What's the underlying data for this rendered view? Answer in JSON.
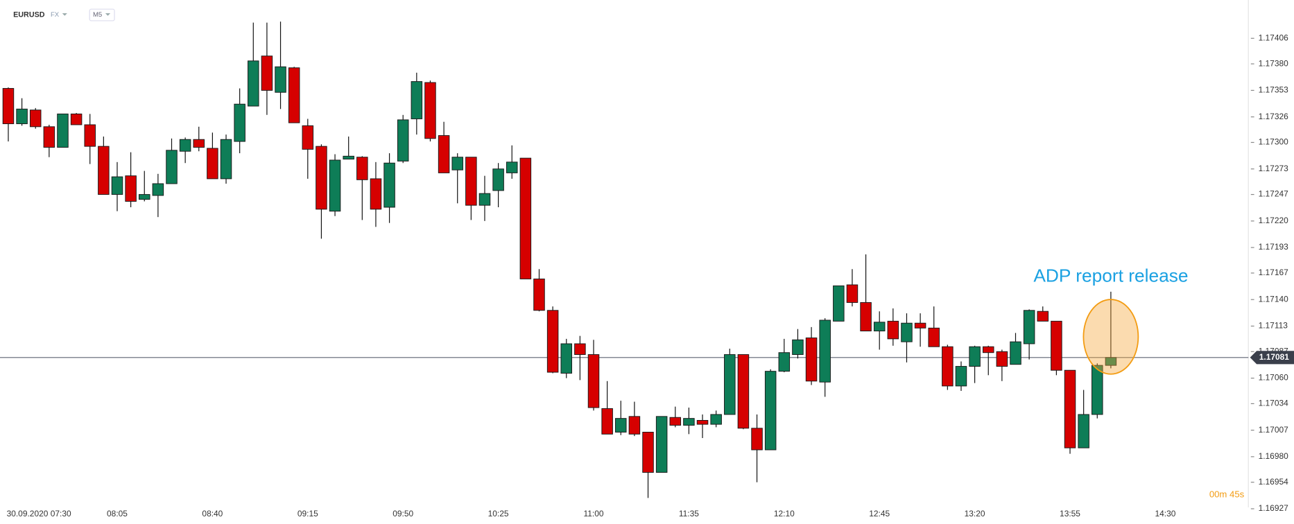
{
  "chart_data": {
    "type": "candlestick",
    "symbol": "EURUSD",
    "market": "FX",
    "timeframe": "M5",
    "annotation": "ADP report release",
    "timer": "00m 45s",
    "up_color": "#0e7d57",
    "down_color": "#d60000",
    "last_price": 1.17081,
    "ylim": [
      1.16925,
      1.17445
    ],
    "yticks": [
      1.17406,
      {
        "value": 1.1738,
        "label": "1.17380"
      },
      1.17353,
      1.17326,
      {
        "value": 1.173,
        "label": "1.17300"
      },
      1.17273,
      1.17247,
      {
        "value": 1.1722,
        "label": "1.17220"
      },
      1.17193,
      1.17167,
      {
        "value": 1.1714,
        "label": "1.17140"
      },
      1.17113,
      1.17087,
      {
        "value": 1.1706,
        "label": "1.17060"
      },
      1.17034,
      1.17007,
      {
        "value": 1.1698,
        "label": "1.16980"
      },
      1.16954,
      1.16927
    ],
    "categories": [
      null,
      "30.09.2020 07:30",
      null,
      null,
      null,
      null,
      null,
      null,
      "08:05",
      null,
      null,
      null,
      null,
      null,
      null,
      "08:40",
      null,
      null,
      null,
      null,
      null,
      null,
      "09:15",
      null,
      null,
      null,
      null,
      null,
      null,
      "09:50",
      null,
      null,
      null,
      null,
      null,
      null,
      "10:25",
      null,
      null,
      null,
      null,
      null,
      null,
      "11:00",
      null,
      null,
      null,
      null,
      null,
      null,
      "11:35",
      null,
      null,
      null,
      null,
      null,
      null,
      "12:10",
      null,
      null,
      null,
      null,
      null,
      null,
      "12:45",
      null,
      null,
      null,
      null,
      null,
      null,
      "13:20",
      null,
      null,
      null,
      null,
      null,
      null,
      "13:55",
      null,
      null,
      null,
      null,
      null,
      null,
      "14:30"
    ],
    "open": [
      1.17355,
      1.17319,
      1.17333,
      1.17316,
      1.17295,
      1.17329,
      1.17318,
      1.17296,
      1.17247,
      1.17266,
      1.17242,
      1.17246,
      1.17258,
      1.17291,
      1.17303,
      1.17294,
      1.17263,
      1.17301,
      1.17337,
      1.17388,
      1.17351,
      1.17376,
      1.17317,
      1.17296,
      1.1723,
      1.17283,
      1.17285,
      1.17263,
      1.17234,
      1.17281,
      1.17324,
      1.17361,
      1.17307,
      1.17272,
      1.17285,
      1.17236,
      1.17251,
      1.17269,
      1.17284,
      1.17161,
      1.17129,
      1.17065,
      1.17095,
      1.17084,
      1.17029,
      1.17005,
      1.17021,
      1.17005,
      1.16964,
      1.1702,
      1.17012,
      1.17017,
      1.17013,
      1.17023,
      1.17084,
      1.17009,
      1.16987,
      1.17067,
      1.17084,
      1.17101,
      1.17056,
      1.17118,
      1.17155,
      1.17137,
      1.17108,
      1.17118,
      1.17097,
      1.17116,
      1.17111,
      1.17092,
      1.17052,
      1.17072,
      1.17092,
      1.17087,
      1.17074,
      1.17095,
      1.17128,
      1.17118,
      1.17068,
      1.16989,
      1.17023,
      1.17073,
      null,
      null,
      null,
      null
    ],
    "high": [
      1.17356,
      1.17345,
      1.17335,
      1.17318,
      1.17329,
      1.1733,
      1.17329,
      1.17306,
      1.1728,
      1.1729,
      1.17271,
      1.17268,
      1.17304,
      1.17305,
      1.17316,
      1.1731,
      1.17308,
      1.17355,
      1.17422,
      1.17422,
      1.17423,
      1.17377,
      1.17324,
      1.17298,
      1.17288,
      1.17306,
      1.17286,
      1.1728,
      1.17289,
      1.17328,
      1.17371,
      1.17363,
      1.17321,
      1.17289,
      1.17285,
      1.17266,
      1.17279,
      1.17297,
      1.17284,
      1.17171,
      1.17133,
      1.171,
      1.17103,
      1.17099,
      1.17057,
      1.17037,
      1.17036,
      1.17005,
      1.17021,
      1.17031,
      1.1703,
      1.17023,
      1.17027,
      1.1709,
      1.17084,
      1.17023,
      1.17069,
      1.171,
      1.1711,
      1.17112,
      1.17121,
      1.17154,
      1.17171,
      1.17186,
      1.17128,
      1.17131,
      1.17126,
      1.17126,
      1.17133,
      1.17094,
      1.17077,
      1.17093,
      1.17093,
      1.17089,
      1.17106,
      1.1713,
      1.17133,
      1.17118,
      1.17068,
      1.17048,
      1.17075,
      1.17148,
      null,
      null,
      null,
      null
    ],
    "low": [
      1.17301,
      1.17317,
      1.17314,
      1.17285,
      1.17295,
      1.17318,
      1.17278,
      1.17247,
      1.1723,
      1.17234,
      1.1724,
      1.17224,
      1.17258,
      1.17279,
      1.17291,
      1.17263,
      1.17258,
      1.17289,
      1.17337,
      1.17328,
      1.17334,
      1.1732,
      1.17263,
      1.17202,
      1.17225,
      1.17283,
      1.17221,
      1.17214,
      1.17218,
      1.17279,
      1.17308,
      1.17301,
      1.17269,
      1.17238,
      1.17221,
      1.1722,
      1.17234,
      1.17263,
      1.17161,
      1.17128,
      1.17065,
      1.1706,
      1.17058,
      1.17027,
      1.17003,
      1.17002,
      1.17001,
      1.16938,
      1.16964,
      1.1701,
      1.17003,
      1.16999,
      1.1701,
      1.17023,
      1.17008,
      1.16954,
      1.16987,
      1.17066,
      1.1708,
      1.17053,
      1.17041,
      1.17118,
      1.17133,
      1.17108,
      1.17089,
      1.17093,
      1.17076,
      1.17092,
      1.17092,
      1.17048,
      1.17047,
      1.17055,
      1.17063,
      1.17057,
      1.17074,
      1.17079,
      1.17118,
      1.17063,
      1.16983,
      1.16989,
      1.17019,
      1.1707,
      null,
      null,
      null,
      null
    ],
    "close": [
      1.17319,
      1.17334,
      1.17316,
      1.17295,
      1.17329,
      1.17318,
      1.17296,
      1.17247,
      1.17265,
      1.1724,
      1.17247,
      1.17258,
      1.17292,
      1.17303,
      1.17295,
      1.17263,
      1.17303,
      1.17339,
      1.17383,
      1.17353,
      1.17377,
      1.1732,
      1.17293,
      1.17232,
      1.17282,
      1.17286,
      1.17262,
      1.17232,
      1.17279,
      1.17323,
      1.17362,
      1.17304,
      1.17269,
      1.17285,
      1.17236,
      1.17248,
      1.17273,
      1.1728,
      1.17161,
      1.17129,
      1.17066,
      1.17095,
      1.17084,
      1.1703,
      1.17003,
      1.17019,
      1.17003,
      1.16964,
      1.17021,
      1.17012,
      1.17019,
      1.17013,
      1.17023,
      1.17084,
      1.17009,
      1.16987,
      1.17067,
      1.17086,
      1.17099,
      1.17057,
      1.17119,
      1.17154,
      1.17137,
      1.17108,
      1.17117,
      1.171,
      1.17116,
      1.17111,
      1.17092,
      1.17052,
      1.17072,
      1.17092,
      1.17086,
      1.17072,
      1.17097,
      1.17129,
      1.17118,
      1.17068,
      1.16989,
      1.17023,
      1.17073,
      1.17081,
      null,
      null,
      null,
      null
    ]
  }
}
